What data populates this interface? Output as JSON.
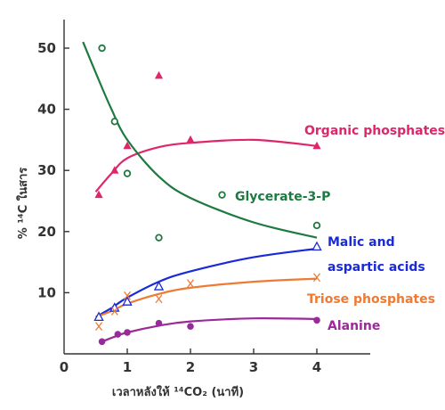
{
  "chart_data": {
    "type": "scatter",
    "xlabel": "เวลาหลังให้ ¹⁴CO₂ (นาที)",
    "ylabel": "% ¹⁴C ในสาร",
    "xlim": [
      0,
      4.8
    ],
    "ylim": [
      0,
      55
    ],
    "x_ticks": [
      "0",
      "1",
      "2",
      "3",
      "4"
    ],
    "y_ticks": [
      "10",
      "20",
      "30",
      "40",
      "50"
    ],
    "grid": false,
    "legend": "inline labels beside curves",
    "series": [
      {
        "name": "Organic phosphates",
        "label_lines": [
          "Organic phosphates"
        ],
        "color": "#e0266a",
        "marker": "triangle-filled",
        "points": [
          [
            0.55,
            26
          ],
          [
            0.8,
            30
          ],
          [
            1.0,
            34
          ],
          [
            1.5,
            45.5
          ],
          [
            2.0,
            35
          ],
          [
            4.0,
            34
          ]
        ],
        "curve": [
          [
            0.5,
            26.5
          ],
          [
            0.75,
            29.5
          ],
          [
            1.0,
            32
          ],
          [
            1.5,
            33.8
          ],
          [
            2.0,
            34.5
          ],
          [
            3.0,
            35
          ],
          [
            4.0,
            34
          ]
        ]
      },
      {
        "name": "Glycerate-3-P",
        "label_lines": [
          "Glycerate-3-P"
        ],
        "color": "#1e7a40",
        "marker": "circle-open",
        "points": [
          [
            0.6,
            50
          ],
          [
            0.8,
            38
          ],
          [
            1.0,
            29.5
          ],
          [
            1.5,
            19
          ],
          [
            2.5,
            26
          ],
          [
            4.0,
            21
          ]
        ],
        "curve": [
          [
            0.3,
            51
          ],
          [
            0.5,
            46
          ],
          [
            0.75,
            40
          ],
          [
            1.0,
            35
          ],
          [
            1.5,
            29
          ],
          [
            2.0,
            25.5
          ],
          [
            3.0,
            21.5
          ],
          [
            4.0,
            19
          ]
        ]
      },
      {
        "name": "Malic and aspartic acids",
        "label_lines": [
          "Malic and",
          "aspartic acids"
        ],
        "color": "#1a2ad8",
        "marker": "triangle-open",
        "points": [
          [
            0.55,
            6
          ],
          [
            0.8,
            7.5
          ],
          [
            1.0,
            8.5
          ],
          [
            1.5,
            11
          ],
          [
            4.0,
            17.5
          ]
        ],
        "curve": [
          [
            0.5,
            6
          ],
          [
            0.75,
            7.5
          ],
          [
            1.0,
            9.2
          ],
          [
            1.5,
            11.8
          ],
          [
            2.0,
            13.5
          ],
          [
            3.0,
            15.8
          ],
          [
            4.0,
            17.2
          ]
        ]
      },
      {
        "name": "Triose phosphates",
        "label_lines": [
          "Triose phosphates"
        ],
        "color": "#ee7a33",
        "marker": "x",
        "points": [
          [
            0.55,
            4.5
          ],
          [
            0.8,
            7
          ],
          [
            1.0,
            9.5
          ],
          [
            1.5,
            9
          ],
          [
            2.0,
            11.5
          ],
          [
            4.0,
            12.5
          ]
        ],
        "curve": [
          [
            0.5,
            6
          ],
          [
            0.75,
            7
          ],
          [
            1.0,
            8.2
          ],
          [
            1.5,
            9.8
          ],
          [
            2.0,
            10.8
          ],
          [
            3.0,
            11.8
          ],
          [
            4.0,
            12.3
          ]
        ]
      },
      {
        "name": "Alanine",
        "label_lines": [
          "Alanine"
        ],
        "color": "#9a2a9a",
        "marker": "circle-filled",
        "points": [
          [
            0.6,
            2
          ],
          [
            0.85,
            3.2
          ],
          [
            1.0,
            3.5
          ],
          [
            1.5,
            5
          ],
          [
            2.0,
            4.5
          ],
          [
            4.0,
            5.5
          ]
        ],
        "curve": [
          [
            0.6,
            2
          ],
          [
            0.8,
            2.8
          ],
          [
            1.0,
            3.5
          ],
          [
            1.5,
            4.6
          ],
          [
            2.0,
            5.3
          ],
          [
            3.0,
            5.8
          ],
          [
            4.0,
            5.7
          ]
        ]
      }
    ]
  }
}
